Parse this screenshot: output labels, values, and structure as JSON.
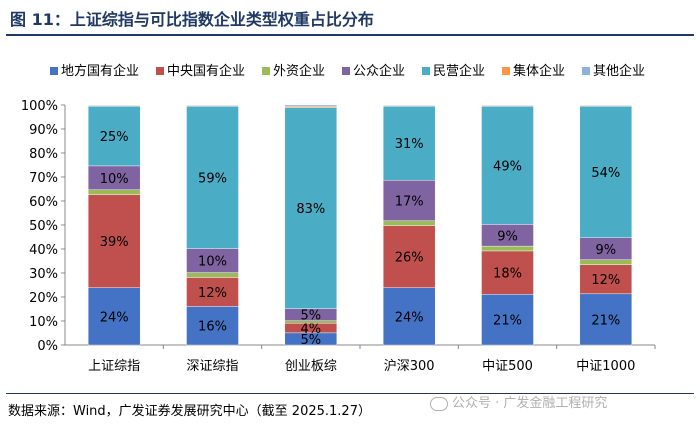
{
  "title": "图 11：上证综指与可比指数企业类型权重占比分布",
  "source": "数据来源：Wind，广发证券发展研究中心（截至 2025.1.27）",
  "watermark": "公众号 · 广发金融工程研究",
  "chart_data": {
    "type": "bar",
    "stacked": true,
    "categories": [
      "上证综指",
      "深证综指",
      "创业板综",
      "沪深300",
      "中证500",
      "中证1000"
    ],
    "series": [
      {
        "name": "地方国有企业",
        "color": "#4472c4",
        "values": [
          24,
          16,
          5,
          24,
          21,
          21
        ],
        "labels": [
          "24%",
          "16%",
          "5%",
          "24%",
          "21%",
          "21%"
        ]
      },
      {
        "name": "中央国有企业",
        "color": "#c0504d",
        "values": [
          39,
          12,
          4,
          26,
          18,
          12
        ],
        "labels": [
          "39%",
          "12%",
          "4%",
          "26%",
          "18%",
          "12%"
        ]
      },
      {
        "name": "外资企业",
        "color": "#9bbb59",
        "values": [
          2,
          2,
          1,
          2,
          2,
          2
        ],
        "labels": [
          "",
          "",
          "",
          "",
          "",
          ""
        ]
      },
      {
        "name": "公众企业",
        "color": "#8064a2",
        "values": [
          10,
          10,
          5,
          17,
          9,
          9
        ],
        "labels": [
          "10%",
          "10%",
          "5%",
          "17%",
          "9%",
          "9%"
        ]
      },
      {
        "name": "民营企业",
        "color": "#4bacc6",
        "values": [
          25,
          59,
          83,
          31,
          49,
          54
        ],
        "labels": [
          "25%",
          "59%",
          "83%",
          "31%",
          "49%",
          "54%"
        ]
      },
      {
        "name": "集体企业",
        "color": "#f79646",
        "values": [
          0.3,
          0.3,
          0.5,
          0.3,
          0.3,
          0.3
        ],
        "labels": [
          "",
          "",
          "",
          "",
          "",
          ""
        ]
      },
      {
        "name": "其他企业",
        "color": "#8fb0d9",
        "values": [
          0.2,
          0.2,
          0.5,
          0.2,
          0.2,
          0.2
        ],
        "labels": [
          "",
          "",
          "",
          "",
          "",
          ""
        ]
      }
    ],
    "yticks": [
      "0%",
      "10%",
      "20%",
      "30%",
      "40%",
      "50%",
      "60%",
      "70%",
      "80%",
      "90%",
      "100%"
    ],
    "ylim": [
      0,
      100
    ],
    "legend_position": "top"
  }
}
